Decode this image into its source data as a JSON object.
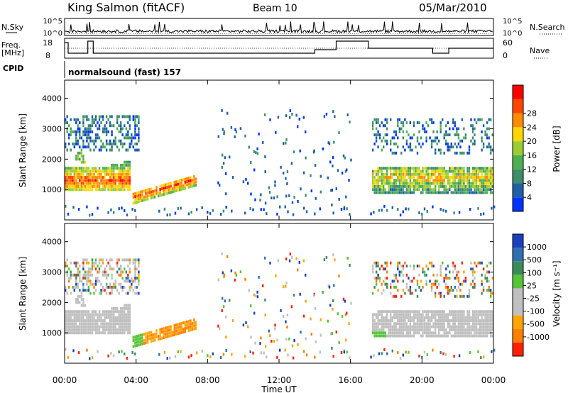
{
  "header": {
    "station": "King Salmon (fitACF)",
    "beam": "Beam 10",
    "date": "05/Mar/2010"
  },
  "labels": {
    "nsky": "N.Sky",
    "nsearch": "N.Search",
    "freq_line1": "Freq.",
    "freq_line2": "[MHz]",
    "nave": "Nave",
    "cpid": "CPID",
    "cpid_value": "normalsound (fast) 157",
    "slant_range": "Slant Range [km]",
    "time_axis": "Time UT",
    "power_bar": "Power [dB]",
    "velocity_bar": "Velocity [m s⁻¹]"
  },
  "colors": {
    "power": [
      "#0033ff",
      "#1f5fa8",
      "#3d8d6a",
      "#4caf50",
      "#9acd32",
      "#ffd700",
      "#ff8c00",
      "#ff4500",
      "#ff0000"
    ],
    "velocity": [
      "#1a3fbf",
      "#2f6fb3",
      "#3c8a5a",
      "#55c437",
      "#c0c0c0",
      "#c0c0c0",
      "#ffa500",
      "#ff7f00",
      "#ff2000"
    ],
    "ground_scatter": "#bebebe"
  },
  "chart_data": [
    {
      "type": "line",
      "name": "noise",
      "y_left_ticks": [
        "10^5",
        "10^0"
      ],
      "y_right_ticks": [
        "10^5",
        "10^0"
      ]
    },
    {
      "type": "line",
      "name": "frequency",
      "y_left_ticks": [
        "18",
        "8"
      ],
      "y_right_ticks": [
        "60",
        "0"
      ]
    },
    {
      "type": "heatmap",
      "name": "power",
      "xlabel": "",
      "ylabel": "Slant Range [km]",
      "y_ticks": [
        1000,
        2000,
        3000,
        4000
      ],
      "ylim": [
        0,
        4600
      ],
      "colorbar_ticks": [
        "4",
        "8",
        "12",
        "16",
        "20",
        "24",
        "28"
      ],
      "features": [
        {
          "from": "00:00",
          "to": "03:40",
          "range": [
            1000,
            1800
          ],
          "level": "20-28 dB"
        },
        {
          "from": "03:50",
          "to": "07:20",
          "range": [
            550,
            1400
          ],
          "level": "20-28 dB"
        },
        {
          "from": "17:20",
          "to": "24:00",
          "range": [
            900,
            1800
          ],
          "level": "12-24 dB"
        },
        {
          "from": "00:00",
          "to": "04:00",
          "range": [
            2300,
            3500
          ],
          "level": "4-12 dB"
        }
      ]
    },
    {
      "type": "heatmap",
      "name": "velocity",
      "xlabel": "Time UT",
      "ylabel": "Slant Range [km]",
      "x_ticks": [
        "00:00",
        "04:00",
        "08:00",
        "12:00",
        "16:00",
        "20:00",
        "00:00"
      ],
      "y_ticks": [
        1000,
        2000,
        3000,
        4000
      ],
      "ylim": [
        0,
        4600
      ],
      "colorbar_ticks": [
        "1000",
        "500",
        "100",
        "25",
        "-25",
        "-100",
        "-500",
        "-1000"
      ]
    }
  ]
}
